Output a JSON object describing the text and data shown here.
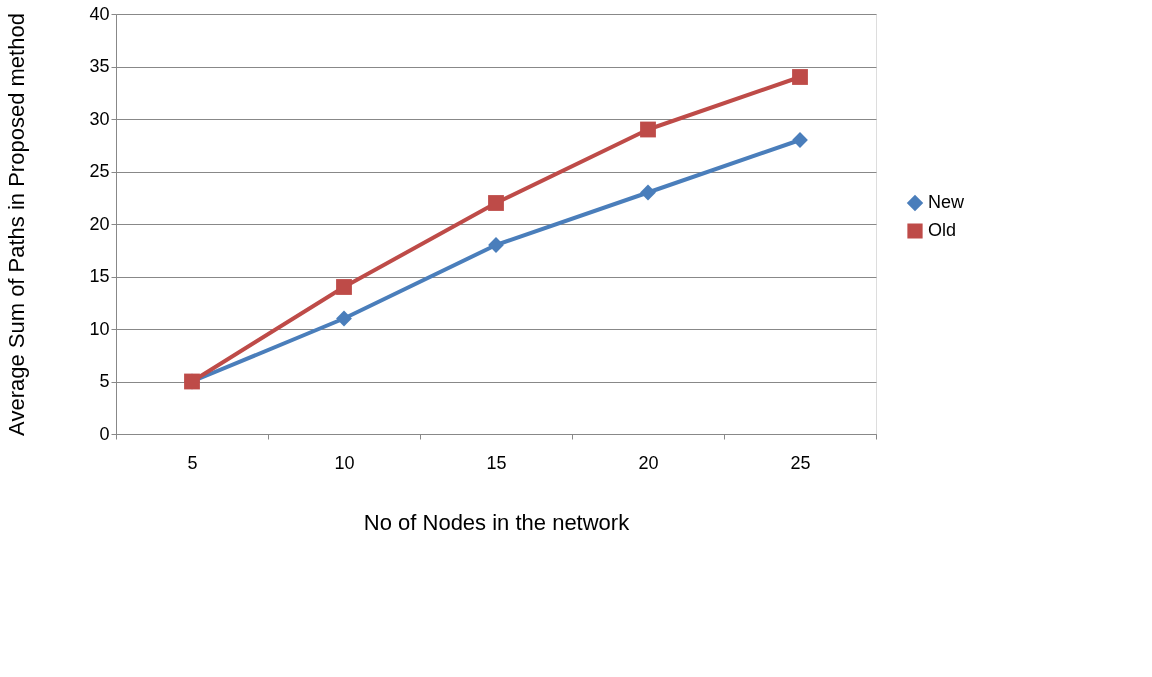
{
  "chart_data": {
    "type": "line",
    "xlabel": "No of Nodes in the network",
    "ylabel": "Average Sum of Paths in Proposed method",
    "categories": [
      "5",
      "10",
      "15",
      "20",
      "25"
    ],
    "series": [
      {
        "name": "New",
        "color": "#4a7ebb",
        "marker": "diamond",
        "values": [
          5,
          11,
          18,
          23,
          28
        ]
      },
      {
        "name": "Old",
        "color": "#be4b48",
        "marker": "square",
        "values": [
          5,
          14,
          22,
          29,
          34
        ]
      }
    ],
    "ylim": [
      0,
      40
    ],
    "yticks": [
      0,
      5,
      10,
      15,
      20,
      25,
      30,
      35,
      40
    ],
    "grid": "y",
    "legend": "right",
    "line_style": "solid"
  }
}
